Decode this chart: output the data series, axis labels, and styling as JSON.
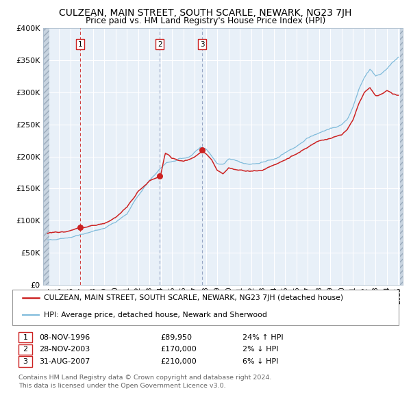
{
  "title": "CULZEAN, MAIN STREET, SOUTH SCARLE, NEWARK, NG23 7JH",
  "subtitle": "Price paid vs. HM Land Registry's House Price Index (HPI)",
  "legend_line1": "CULZEAN, MAIN STREET, SOUTH SCARLE, NEWARK, NG23 7JH (detached house)",
  "legend_line2": "HPI: Average price, detached house, Newark and Sherwood",
  "footer_line1": "Contains HM Land Registry data © Crown copyright and database right 2024.",
  "footer_line2": "This data is licensed under the Open Government Licence v3.0.",
  "transactions": [
    {
      "num": 1,
      "date": "08-NOV-1996",
      "price": "£89,950",
      "hpi_diff": "24% ↑ HPI"
    },
    {
      "num": 2,
      "date": "28-NOV-2003",
      "price": "£170,000",
      "hpi_diff": "2% ↓ HPI"
    },
    {
      "num": 3,
      "date": "31-AUG-2007",
      "price": "£210,000",
      "hpi_diff": "6% ↓ HPI"
    }
  ],
  "transaction_dates_decimal": [
    1996.86,
    2003.91,
    2007.67
  ],
  "transaction_prices": [
    89950,
    170000,
    210000
  ],
  "ylim": [
    0,
    400000
  ],
  "yticks": [
    0,
    50000,
    100000,
    150000,
    200000,
    250000,
    300000,
    350000,
    400000
  ],
  "hpi_color": "#7ab8d9",
  "price_color": "#cc2222",
  "vline1_color": "#cc2222",
  "vline23_color": "#8899bb",
  "plot_bg": "#e8f0f8",
  "grid_color": "#ffffff",
  "hatch_bg": "#c8d4e0"
}
